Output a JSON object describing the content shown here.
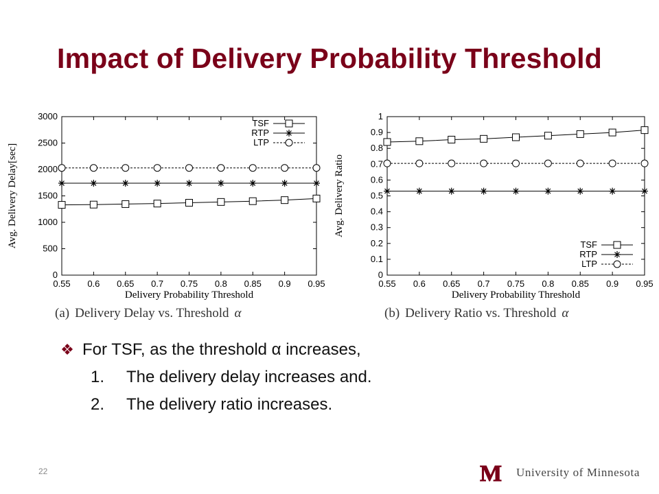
{
  "slide": {
    "title": "Impact of Delivery Probability Threshold",
    "bullet_main": "For TSF, as the threshold α increases,",
    "sub_items": [
      {
        "num": "1.",
        "text": "The delivery delay increases and."
      },
      {
        "num": "2.",
        "text": "The delivery ratio increases."
      }
    ],
    "page_number": "22",
    "footer_text": "University of Minnesota",
    "logo_letter": "M",
    "colors": {
      "title": "#7a0019",
      "logo": "#7a0019"
    },
    "icons": {
      "bullet": "diamond-bullet-icon",
      "logo": "university-m-logo-icon"
    }
  },
  "chart_data": [
    {
      "type": "line",
      "x": [
        0.55,
        0.6,
        0.65,
        0.7,
        0.75,
        0.8,
        0.85,
        0.9,
        0.95
      ],
      "series": [
        {
          "name": "TSF",
          "marker": "square",
          "values": [
            1330,
            1335,
            1345,
            1355,
            1370,
            1385,
            1400,
            1420,
            1450
          ]
        },
        {
          "name": "RTP",
          "marker": "asterisk",
          "values": [
            1740,
            1740,
            1740,
            1740,
            1740,
            1740,
            1740,
            1740,
            1740
          ]
        },
        {
          "name": "LTP",
          "marker": "circle",
          "values": [
            2030,
            2030,
            2030,
            2030,
            2030,
            2030,
            2030,
            2030,
            2030
          ]
        }
      ],
      "xlabel": "Delivery Probability Threshold",
      "ylabel": "Avg. Delivery Delay[sec]",
      "xlim": [
        0.55,
        0.95
      ],
      "ylim": [
        0,
        3000
      ],
      "xticks": [
        "0.55",
        "0.6",
        "0.65",
        "0.7",
        "0.75",
        "0.8",
        "0.85",
        "0.9",
        "0.95"
      ],
      "yticks": [
        "0",
        "500",
        "1000",
        "1500",
        "2000",
        "2500",
        "3000"
      ],
      "legend": "top-right",
      "caption_prefix": "(a)",
      "caption": "Delivery Delay vs. Threshold",
      "caption_symbol": "α",
      "grid": false
    },
    {
      "type": "line",
      "x": [
        0.55,
        0.6,
        0.65,
        0.7,
        0.75,
        0.8,
        0.85,
        0.9,
        0.95
      ],
      "series": [
        {
          "name": "TSF",
          "marker": "square",
          "values": [
            0.84,
            0.845,
            0.855,
            0.86,
            0.87,
            0.88,
            0.89,
            0.9,
            0.915
          ]
        },
        {
          "name": "RTP",
          "marker": "asterisk",
          "values": [
            0.53,
            0.53,
            0.53,
            0.53,
            0.53,
            0.53,
            0.53,
            0.53,
            0.53
          ]
        },
        {
          "name": "LTP",
          "marker": "circle",
          "values": [
            0.705,
            0.705,
            0.705,
            0.705,
            0.705,
            0.705,
            0.705,
            0.705,
            0.705
          ]
        }
      ],
      "xlabel": "Delivery Probability Threshold",
      "ylabel": "Avg. Delivery Ratio",
      "xlim": [
        0.55,
        0.95
      ],
      "ylim": [
        0,
        1
      ],
      "xticks": [
        "0.55",
        "0.6",
        "0.65",
        "0.7",
        "0.75",
        "0.8",
        "0.85",
        "0.9",
        "0.95"
      ],
      "yticks": [
        "0",
        "0.1",
        "0.2",
        "0.3",
        "0.4",
        "0.5",
        "0.6",
        "0.7",
        "0.8",
        "0.9",
        "1"
      ],
      "legend": "bottom-right",
      "caption_prefix": "(b)",
      "caption": "Delivery Ratio vs. Threshold",
      "caption_symbol": "α",
      "grid": false
    }
  ]
}
